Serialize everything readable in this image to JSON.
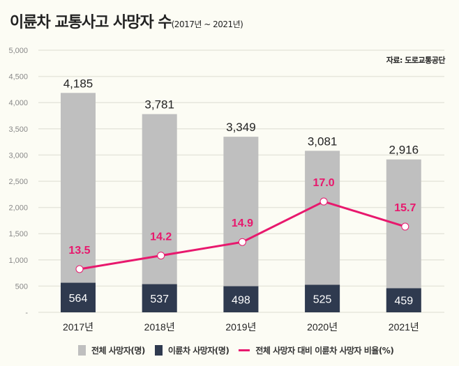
{
  "title": {
    "main": "이륜차 교통사고 사망자 수",
    "period": "(2017년 ~ 2021년)"
  },
  "source": "자료: 도로교통공단",
  "colors": {
    "total_bar": "#bfbfbf",
    "motorcycle_bar": "#2f3a4f",
    "ratio_line": "#e8186d",
    "grid": "#e6e6dc",
    "background": "#fcfcf4"
  },
  "chart_data": {
    "type": "bar",
    "title": "이륜차 교통사고 사망자 수 (2017년 ~ 2021년)",
    "xlabel": "",
    "ylabel": "",
    "categories": [
      "2017년",
      "2018년",
      "2019년",
      "2020년",
      "2021년"
    ],
    "ylim": [
      0,
      5000
    ],
    "yticks": [
      0,
      500,
      1000,
      1500,
      2000,
      2500,
      3000,
      3500,
      4000,
      4500,
      5000
    ],
    "ytick_labels": [
      "-",
      "500",
      "1,000",
      "1,500",
      "2,000",
      "2,500",
      "3,000",
      "3,500",
      "4,000",
      "4,500",
      "5,000"
    ],
    "grid": true,
    "legend_position": "bottom",
    "series": [
      {
        "name": "전체 사망자(명)",
        "type": "bar",
        "values": [
          4185,
          3781,
          3349,
          3081,
          2916
        ],
        "labels": [
          "4,185",
          "3,781",
          "3,349",
          "3,081",
          "2,916"
        ]
      },
      {
        "name": "이륜차 사망자(명)",
        "type": "bar",
        "values": [
          564,
          537,
          498,
          525,
          459
        ],
        "labels": [
          "564",
          "537",
          "498",
          "525",
          "459"
        ]
      },
      {
        "name": "전체 사망자 대비 이륜차 사망자 비율(%)",
        "type": "line",
        "axis": "secondary",
        "values": [
          13.5,
          14.2,
          14.9,
          17.0,
          15.7
        ],
        "labels": [
          "13.5",
          "14.2",
          "14.9",
          "17.0",
          "15.7"
        ]
      }
    ]
  }
}
